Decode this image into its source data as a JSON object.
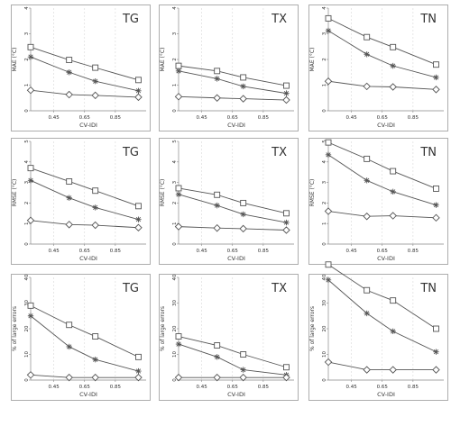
{
  "figure": {
    "xlabel": "CV-IDI",
    "xticks": [
      0.45,
      0.65,
      0.85
    ],
    "markers": [
      "square",
      "star",
      "diamond"
    ],
    "color": "#555555"
  },
  "rows": [
    {
      "ylabel": "MAE (°C)",
      "ylim": [
        0,
        4
      ],
      "yticks": [
        0,
        1,
        2,
        3,
        4
      ]
    },
    {
      "ylabel": "RMSE (°C)",
      "ylim": [
        0,
        5
      ],
      "yticks": [
        0,
        1,
        2,
        3,
        4,
        5
      ]
    },
    {
      "ylabel": "% of large errors",
      "ylim": [
        0,
        40
      ],
      "yticks": [
        0,
        10,
        20,
        30,
        40
      ]
    }
  ],
  "chart_data": [
    {
      "type": "line",
      "title": "TG",
      "xlabel": "CV-IDI",
      "ylabel": "MAE (°C)",
      "ylim": [
        0,
        4
      ],
      "xlim": [
        0.3,
        1.05
      ],
      "x": [
        0.3,
        0.55,
        0.72,
        1.0
      ],
      "series": [
        {
          "marker": "square",
          "values": [
            2.48,
            1.98,
            1.68,
            1.2
          ]
        },
        {
          "marker": "star",
          "values": [
            2.1,
            1.5,
            1.15,
            0.78
          ]
        },
        {
          "marker": "diamond",
          "values": [
            0.8,
            0.63,
            0.6,
            0.53
          ]
        }
      ]
    },
    {
      "type": "line",
      "title": "TX",
      "xlabel": "CV-IDI",
      "ylabel": "MAE (°C)",
      "ylim": [
        0,
        4
      ],
      "xlim": [
        0.3,
        1.05
      ],
      "x": [
        0.3,
        0.55,
        0.72,
        1.0
      ],
      "series": [
        {
          "marker": "square",
          "values": [
            1.75,
            1.55,
            1.3,
            0.98
          ]
        },
        {
          "marker": "star",
          "values": [
            1.55,
            1.25,
            0.95,
            0.68
          ]
        },
        {
          "marker": "diamond",
          "values": [
            0.55,
            0.5,
            0.47,
            0.42
          ]
        }
      ]
    },
    {
      "type": "line",
      "title": "TN",
      "xlabel": "CV-IDI",
      "ylabel": "MAE (°C)",
      "ylim": [
        0,
        4
      ],
      "xlim": [
        0.3,
        1.05
      ],
      "x": [
        0.3,
        0.55,
        0.72,
        1.0
      ],
      "series": [
        {
          "marker": "square",
          "values": [
            3.6,
            2.87,
            2.48,
            1.8
          ]
        },
        {
          "marker": "star",
          "values": [
            3.12,
            2.2,
            1.75,
            1.3
          ]
        },
        {
          "marker": "diamond",
          "values": [
            1.15,
            0.95,
            0.93,
            0.83
          ]
        }
      ]
    },
    {
      "type": "line",
      "title": "TG",
      "xlabel": "CV-IDI",
      "ylabel": "RMSE (°C)",
      "ylim": [
        0,
        5
      ],
      "xlim": [
        0.3,
        1.05
      ],
      "x": [
        0.3,
        0.55,
        0.72,
        1.0
      ],
      "series": [
        {
          "marker": "square",
          "values": [
            3.7,
            3.05,
            2.6,
            1.85
          ]
        },
        {
          "marker": "star",
          "values": [
            3.1,
            2.25,
            1.78,
            1.2
          ]
        },
        {
          "marker": "diamond",
          "values": [
            1.15,
            0.95,
            0.92,
            0.8
          ]
        }
      ]
    },
    {
      "type": "line",
      "title": "TX",
      "xlabel": "CV-IDI",
      "ylabel": "RMSE (°C)",
      "ylim": [
        0,
        5
      ],
      "xlim": [
        0.3,
        1.05
      ],
      "x": [
        0.3,
        0.55,
        0.72,
        1.0
      ],
      "series": [
        {
          "marker": "square",
          "values": [
            2.72,
            2.4,
            2.0,
            1.5
          ]
        },
        {
          "marker": "star",
          "values": [
            2.42,
            1.88,
            1.45,
            1.05
          ]
        },
        {
          "marker": "diamond",
          "values": [
            0.85,
            0.78,
            0.75,
            0.68
          ]
        }
      ]
    },
    {
      "type": "line",
      "title": "TN",
      "xlabel": "CV-IDI",
      "ylabel": "RMSE (°C)",
      "ylim": [
        0,
        5
      ],
      "xlim": [
        0.3,
        1.05
      ],
      "x": [
        0.3,
        0.55,
        0.72,
        1.0
      ],
      "series": [
        {
          "marker": "square",
          "values": [
            4.95,
            4.15,
            3.55,
            2.7
          ]
        },
        {
          "marker": "star",
          "values": [
            4.35,
            3.1,
            2.55,
            1.9
          ]
        },
        {
          "marker": "diamond",
          "values": [
            1.6,
            1.35,
            1.38,
            1.28
          ]
        }
      ]
    },
    {
      "type": "line",
      "title": "TG",
      "xlabel": "CV-IDI",
      "ylabel": "% of large errors",
      "ylim": [
        0,
        40
      ],
      "xlim": [
        0.3,
        1.05
      ],
      "x": [
        0.3,
        0.55,
        0.72,
        1.0
      ],
      "series": [
        {
          "marker": "square",
          "values": [
            29,
            21.5,
            17,
            9
          ]
        },
        {
          "marker": "star",
          "values": [
            25,
            13,
            8,
            3.5
          ]
        },
        {
          "marker": "diamond",
          "values": [
            2,
            1,
            1,
            1
          ]
        }
      ]
    },
    {
      "type": "line",
      "title": "TX",
      "xlabel": "CV-IDI",
      "ylabel": "% of large errors",
      "ylim": [
        0,
        40
      ],
      "xlim": [
        0.3,
        1.05
      ],
      "x": [
        0.3,
        0.55,
        0.72,
        1.0
      ],
      "series": [
        {
          "marker": "square",
          "values": [
            17,
            13.5,
            10,
            5
          ]
        },
        {
          "marker": "star",
          "values": [
            14,
            9,
            4,
            2
          ]
        },
        {
          "marker": "diamond",
          "values": [
            1,
            1,
            1,
            1
          ]
        }
      ]
    },
    {
      "type": "line",
      "title": "TN",
      "xlabel": "CV-IDI",
      "ylabel": "% of large errors",
      "ylim": [
        0,
        40
      ],
      "xlim": [
        0.3,
        1.05
      ],
      "x": [
        0.3,
        0.55,
        0.72,
        1.0
      ],
      "series": [
        {
          "marker": "square",
          "values": [
            45,
            35,
            31,
            20
          ]
        },
        {
          "marker": "star",
          "values": [
            39,
            26,
            19,
            11
          ]
        },
        {
          "marker": "diamond",
          "values": [
            7,
            4,
            4,
            4
          ]
        }
      ]
    }
  ]
}
